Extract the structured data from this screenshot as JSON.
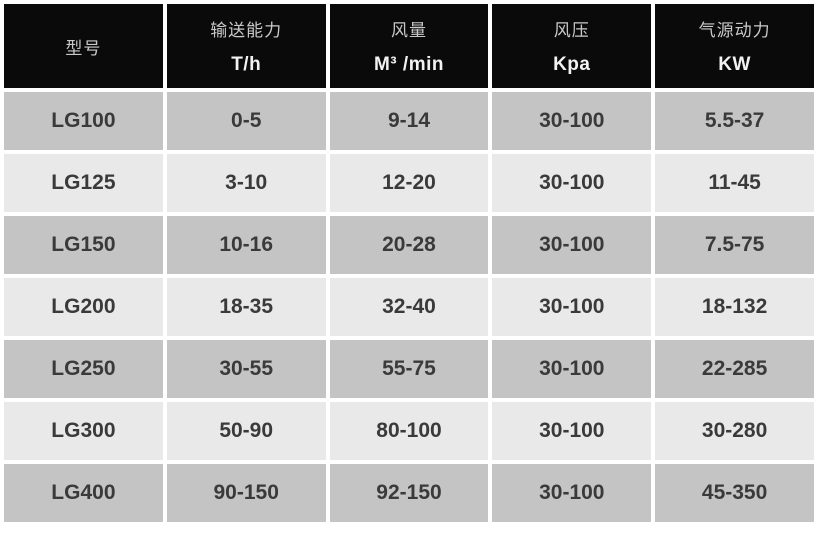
{
  "table": {
    "header": [
      {
        "label": "型号",
        "unit": ""
      },
      {
        "label": "输送能力",
        "unit": "T/h"
      },
      {
        "label": "风量",
        "unit": "M³ /min"
      },
      {
        "label": "风压",
        "unit": "Kpa"
      },
      {
        "label": "气源动力",
        "unit": "KW"
      }
    ],
    "rows": [
      {
        "model": "LG100",
        "capacity": "0-5",
        "airflow": "9-14",
        "pressure": "30-100",
        "power": "5.5-37"
      },
      {
        "model": "LG125",
        "capacity": "3-10",
        "airflow": "12-20",
        "pressure": "30-100",
        "power": "11-45"
      },
      {
        "model": "LG150",
        "capacity": "10-16",
        "airflow": "20-28",
        "pressure": "30-100",
        "power": "7.5-75"
      },
      {
        "model": "LG200",
        "capacity": "18-35",
        "airflow": "32-40",
        "pressure": "30-100",
        "power": "18-132"
      },
      {
        "model": "LG250",
        "capacity": "30-55",
        "airflow": "55-75",
        "pressure": "30-100",
        "power": "22-285"
      },
      {
        "model": "LG300",
        "capacity": "50-90",
        "airflow": "80-100",
        "pressure": "30-100",
        "power": "30-280"
      },
      {
        "model": "LG400",
        "capacity": "90-150",
        "airflow": "92-150",
        "pressure": "30-100",
        "power": "45-350"
      }
    ]
  },
  "colors": {
    "header_bg": "#0a0a0a",
    "header_label_text": "#c9c9c9",
    "header_unit_text": "#f2f2f2",
    "row_dark_bg": "#c4c4c4",
    "row_light_bg": "#e9e9e9",
    "cell_text": "#3a3a3a",
    "gap": "#ffffff"
  },
  "chart_data": {
    "type": "table",
    "title": "",
    "columns": [
      "型号",
      "输送能力 T/h",
      "风量 M³ /min",
      "风压 Kpa",
      "气源动力 KW"
    ],
    "rows": [
      [
        "LG100",
        "0-5",
        "9-14",
        "30-100",
        "5.5-37"
      ],
      [
        "LG125",
        "3-10",
        "12-20",
        "30-100",
        "11-45"
      ],
      [
        "LG150",
        "10-16",
        "20-28",
        "30-100",
        "7.5-75"
      ],
      [
        "LG200",
        "18-35",
        "32-40",
        "30-100",
        "18-132"
      ],
      [
        "LG250",
        "30-55",
        "55-75",
        "30-100",
        "22-285"
      ],
      [
        "LG300",
        "50-90",
        "80-100",
        "30-100",
        "30-280"
      ],
      [
        "LG400",
        "90-150",
        "92-150",
        "30-100",
        "45-350"
      ]
    ]
  }
}
